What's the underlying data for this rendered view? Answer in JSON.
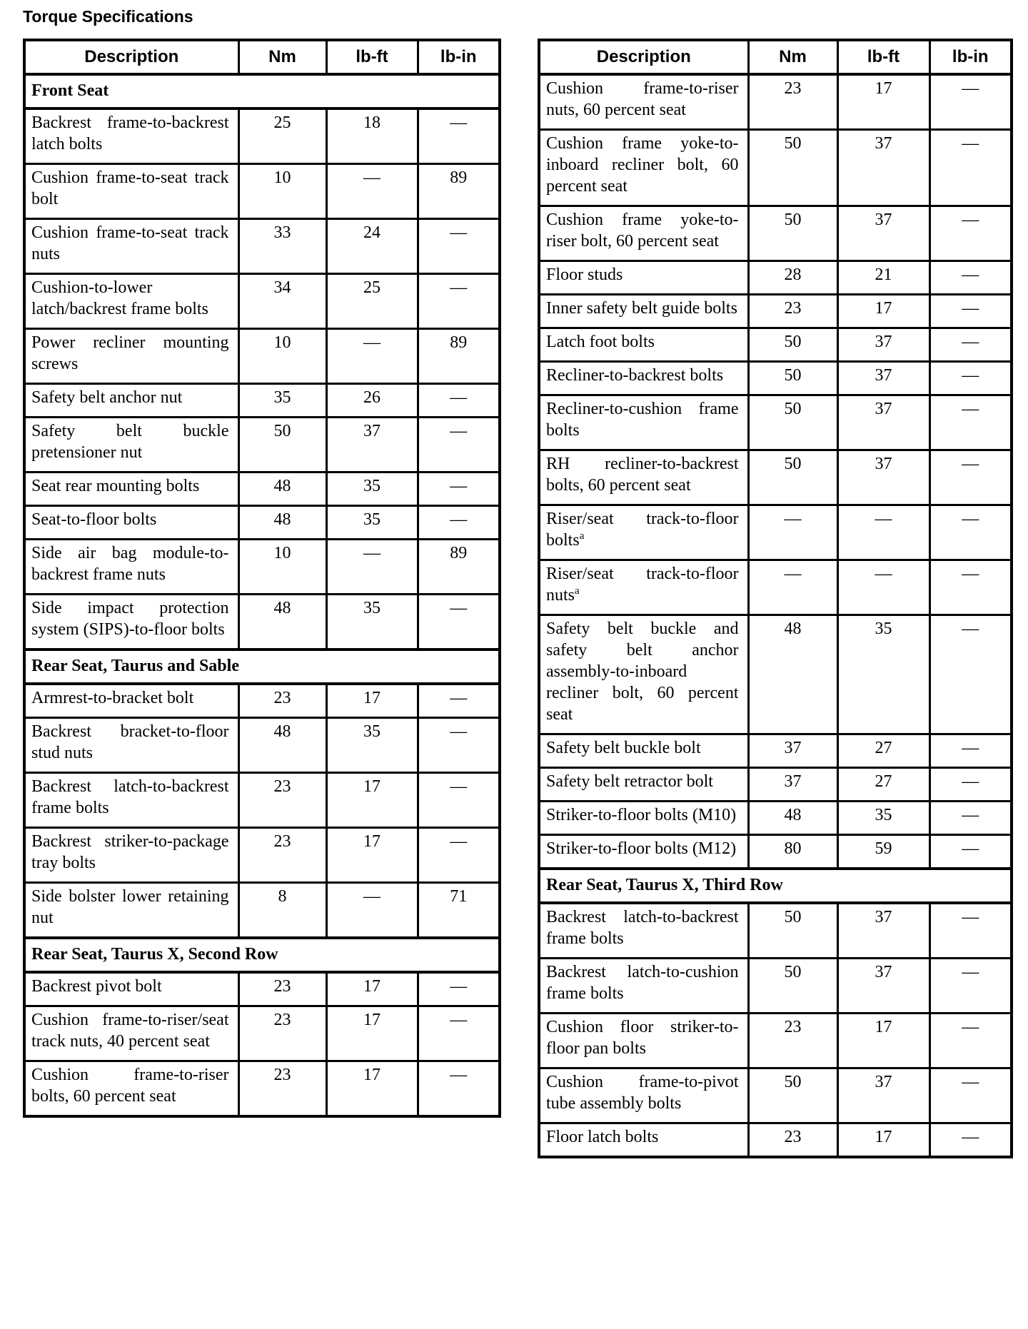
{
  "title": "Torque Specifications",
  "tables": [
    {
      "name": "left",
      "columns": [
        "Description",
        "Nm",
        "lb-ft",
        "lb-in"
      ],
      "rows": [
        {
          "section": "Front Seat"
        },
        {
          "desc": "Backrest frame-to-backrest latch bolts",
          "nm": "25",
          "lbft": "18",
          "lbin": "—"
        },
        {
          "desc": "Cushion frame-to-seat track bolt",
          "nm": "10",
          "lbft": "—",
          "lbin": "89"
        },
        {
          "desc": "Cushion frame-to-seat track nuts",
          "nm": "33",
          "lbft": "24",
          "lbin": "—"
        },
        {
          "desc": "Cushion-to-lower latch/backrest frame bolts",
          "nm": "34",
          "lbft": "25",
          "lbin": "—"
        },
        {
          "desc": "Power recliner mounting screws",
          "nm": "10",
          "lbft": "—",
          "lbin": "89"
        },
        {
          "desc": "Safety belt anchor nut",
          "nm": "35",
          "lbft": "26",
          "lbin": "—"
        },
        {
          "desc": "Safety belt buckle pretensioner nut",
          "nm": "50",
          "lbft": "37",
          "lbin": "—"
        },
        {
          "desc": "Seat rear mounting bolts",
          "nm": "48",
          "lbft": "35",
          "lbin": "—"
        },
        {
          "desc": "Seat-to-floor bolts",
          "nm": "48",
          "lbft": "35",
          "lbin": "—"
        },
        {
          "desc": "Side air bag module-to-backrest frame nuts",
          "nm": "10",
          "lbft": "—",
          "lbin": "89"
        },
        {
          "desc": "Side impact protection system (SIPS)-to-floor bolts",
          "nm": "48",
          "lbft": "35",
          "lbin": "—"
        },
        {
          "section": "Rear Seat, Taurus and Sable"
        },
        {
          "desc": "Armrest-to-bracket bolt",
          "nm": "23",
          "lbft": "17",
          "lbin": "—"
        },
        {
          "desc": "Backrest bracket-to-floor stud nuts",
          "nm": "48",
          "lbft": "35",
          "lbin": "—"
        },
        {
          "desc": "Backrest latch-to-backrest frame bolts",
          "nm": "23",
          "lbft": "17",
          "lbin": "—"
        },
        {
          "desc": "Backrest striker-to-package tray bolts",
          "nm": "23",
          "lbft": "17",
          "lbin": "—"
        },
        {
          "desc": "Side bolster lower retaining nut",
          "nm": "8",
          "lbft": "—",
          "lbin": "71"
        },
        {
          "section": "Rear Seat, Taurus X, Second Row"
        },
        {
          "desc": "Backrest pivot bolt",
          "nm": "23",
          "lbft": "17",
          "lbin": "—"
        },
        {
          "desc": "Cushion frame-to-riser/seat track nuts, 40 percent seat",
          "nm": "23",
          "lbft": "17",
          "lbin": "—"
        },
        {
          "desc": "Cushion frame-to-riser bolts, 60 percent seat",
          "nm": "23",
          "lbft": "17",
          "lbin": "—"
        }
      ]
    },
    {
      "name": "right",
      "columns": [
        "Description",
        "Nm",
        "lb-ft",
        "lb-in"
      ],
      "rows": [
        {
          "desc": "Cushion frame-to-riser nuts, 60 percent seat",
          "nm": "23",
          "lbft": "17",
          "lbin": "—"
        },
        {
          "desc": "Cushion frame yoke-to-inboard recliner bolt, 60 percent seat",
          "nm": "50",
          "lbft": "37",
          "lbin": "—"
        },
        {
          "desc": "Cushion frame yoke-to-riser bolt, 60 percent seat",
          "nm": "50",
          "lbft": "37",
          "lbin": "—"
        },
        {
          "desc": "Floor studs",
          "nm": "28",
          "lbft": "21",
          "lbin": "—"
        },
        {
          "desc": "Inner safety belt guide bolts",
          "nm": "23",
          "lbft": "17",
          "lbin": "—"
        },
        {
          "desc": "Latch foot bolts",
          "nm": "50",
          "lbft": "37",
          "lbin": "—"
        },
        {
          "desc": "Recliner-to-backrest bolts",
          "nm": "50",
          "lbft": "37",
          "lbin": "—"
        },
        {
          "desc": "Recliner-to-cushion frame bolts",
          "nm": "50",
          "lbft": "37",
          "lbin": "—"
        },
        {
          "desc": "RH recliner-to-backrest bolts, 60 percent seat",
          "nm": "50",
          "lbft": "37",
          "lbin": "—"
        },
        {
          "desc": "Riser/seat track-to-floor bolts",
          "sup": "a",
          "nm": "—",
          "lbft": "—",
          "lbin": "—"
        },
        {
          "desc": "Riser/seat track-to-floor nuts",
          "sup": "a",
          "nm": "—",
          "lbft": "—",
          "lbin": "—"
        },
        {
          "desc": "Safety belt buckle and safety belt anchor assembly-to-inboard recliner bolt, 60 percent seat",
          "nm": "48",
          "lbft": "35",
          "lbin": "—"
        },
        {
          "desc": "Safety belt buckle bolt",
          "nm": "37",
          "lbft": "27",
          "lbin": "—"
        },
        {
          "desc": "Safety belt retractor bolt",
          "nm": "37",
          "lbft": "27",
          "lbin": "—"
        },
        {
          "desc": "Striker-to-floor bolts (M10)",
          "nm": "48",
          "lbft": "35",
          "lbin": "—"
        },
        {
          "desc": "Striker-to-floor bolts (M12)",
          "nm": "80",
          "lbft": "59",
          "lbin": "—"
        },
        {
          "section": "Rear Seat, Taurus X, Third Row"
        },
        {
          "desc": "Backrest latch-to-backrest frame bolts",
          "nm": "50",
          "lbft": "37",
          "lbin": "—"
        },
        {
          "desc": "Backrest latch-to-cushion frame bolts",
          "nm": "50",
          "lbft": "37",
          "lbin": "—"
        },
        {
          "desc": "Cushion floor striker-to-floor pan bolts",
          "nm": "23",
          "lbft": "17",
          "lbin": "—"
        },
        {
          "desc": "Cushion frame-to-pivot tube assembly bolts",
          "nm": "50",
          "lbft": "37",
          "lbin": "—"
        },
        {
          "desc": "Floor latch bolts",
          "nm": "23",
          "lbft": "17",
          "lbin": "—"
        }
      ]
    }
  ]
}
